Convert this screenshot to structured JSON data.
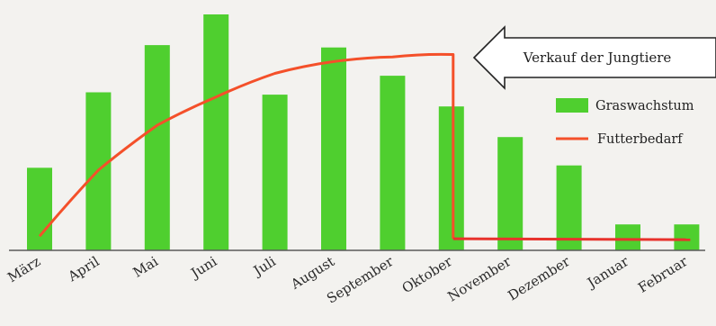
{
  "chart_data": {
    "type": "bar",
    "categories": [
      "März",
      "April",
      "Mai",
      "Juni",
      "Juli",
      "August",
      "September",
      "Oktober",
      "November",
      "Dezember",
      "Januar",
      "Februar"
    ],
    "series": [
      {
        "name": "Graswachstum",
        "type": "bar",
        "color": "#4fcf2f",
        "values": [
          35,
          67,
          87,
          100,
          66,
          86,
          74,
          61,
          48,
          36,
          11,
          11
        ]
      },
      {
        "name": "Futterbedarf",
        "type": "line",
        "color": "#f4502a",
        "values": [
          6,
          34,
          53,
          65,
          75,
          80,
          82,
          83,
          3,
          3,
          3,
          3
        ]
      }
    ],
    "annotation": {
      "text": "Verkauf der Jungtiere",
      "arrow_direction": "left",
      "position": "top-right"
    },
    "legend_position": "right",
    "grid": false
  }
}
